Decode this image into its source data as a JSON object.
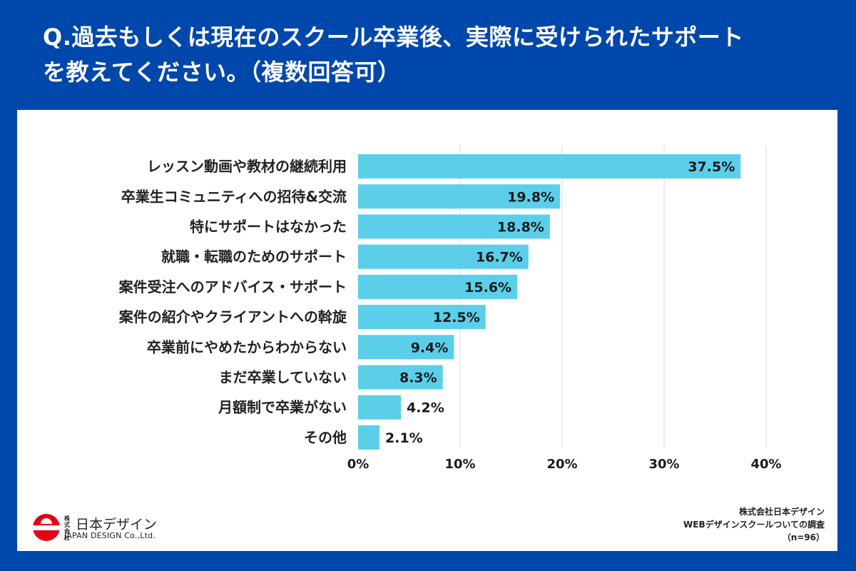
{
  "title": {
    "line1": "Q.過去もしくは現在のスクール卒業後、実際に受けられたサポート",
    "line2": "を教えてください。（複数回答可）"
  },
  "colors": {
    "background": "#0047AB",
    "bar": "#5BCFEA",
    "grid": "#E6E6E6"
  },
  "chart_data": {
    "type": "bar",
    "orientation": "horizontal",
    "categories": [
      "レッスン動画や教材の継続利用",
      "卒業生コミュニティへの招待&交流",
      "特にサポートはなかった",
      "就職・転職のためのサポート",
      "案件受注へのアドバイス・サポート",
      "案件の紹介やクライアントへの斡旋",
      "卒業前にやめたからわからない",
      "まだ卒業していない",
      "月額制で卒業がない",
      "その他"
    ],
    "values": [
      37.5,
      19.8,
      18.8,
      16.7,
      15.6,
      12.5,
      9.4,
      8.3,
      4.2,
      2.1
    ],
    "value_labels": [
      "37.5%",
      "19.8%",
      "18.8%",
      "16.7%",
      "15.6%",
      "12.5%",
      "9.4%",
      "8.3%",
      "4.2%",
      "2.1%"
    ],
    "xlim": [
      0,
      40
    ],
    "xticks": [
      0,
      10,
      20,
      30,
      40
    ],
    "xtick_labels": [
      "0%",
      "10%",
      "20%",
      "30%",
      "40%"
    ],
    "grid": true
  },
  "logo": {
    "small_text": "株式会社",
    "name": "日本デザイン",
    "english": "JAPAN DESIGN Co.,Ltd."
  },
  "source": {
    "line1": "株式会社日本デザイン",
    "line2": "WEBデザインスクールついての調査",
    "line3": "（n=96）"
  }
}
